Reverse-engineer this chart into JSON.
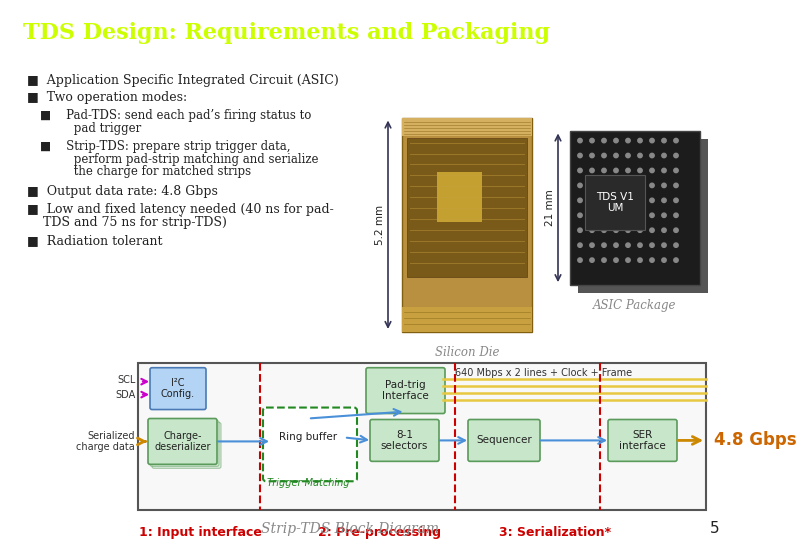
{
  "title": "TDS Design: Requirements and Packaging",
  "title_color": "#ccff00",
  "title_bg_color": "#0d1f6e",
  "title_fontsize": 16,
  "body_bg_color": "#ffffff",
  "caption_silicon": "Silicon Die",
  "caption_asic": "ASIC Package",
  "dim_52": "5.2 mm",
  "dim_21": "21 mm",
  "bottom_caption": "Strip-TDS Block Diagram",
  "page_number": "5",
  "text_color": "#222222",
  "caption_color": "#888888",
  "red_label_color": "#cc0000",
  "section_labels": [
    "1: Input interface",
    "2: Pre-processing",
    "3: Serialization*"
  ],
  "block_diagram_label": "640 Mbps x 2 lines + Clock + Frame",
  "gbps_label": "4.8 Gbps",
  "trigger_label": "Trigger Matching",
  "green_fc": "#c8e6c9",
  "green_ec": "#5a9a5a",
  "blue_fc": "#b3d4f5",
  "blue_ec": "#4a7ab5",
  "arrow_blue": "#4a90d9",
  "arrow_orange": "#cc8800",
  "arrow_magenta": "#cc00cc",
  "yellow_line": "#e8c840",
  "dashed_green_ec": "#228822",
  "dark_bg": "#1a1a1a",
  "bga_dot": "#888888",
  "pkg_inner_fc": "#2a2a2a",
  "pkg_inner_ec": "#555555"
}
